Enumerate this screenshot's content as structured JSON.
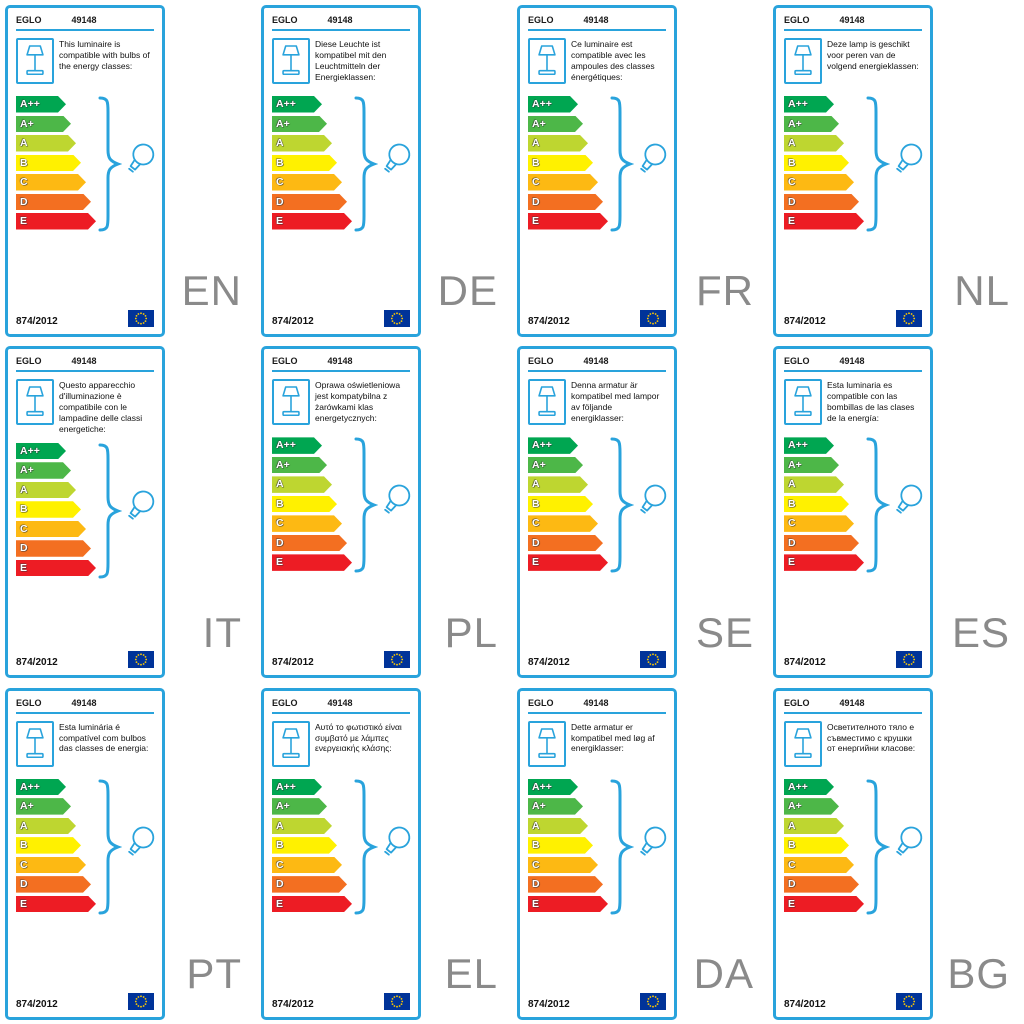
{
  "card": {
    "brand": "EGLO",
    "model": "49148",
    "regulation": "874/2012",
    "accent_color": "#29a3dc",
    "lang_color": "#8a8a8a"
  },
  "eu_flag": {
    "background": "#003399",
    "star_color": "#ffcc00"
  },
  "energy_classes": [
    {
      "label": "A++",
      "color": "#00a651"
    },
    {
      "label": "A+",
      "color": "#4db748"
    },
    {
      "label": "A",
      "color": "#bed630"
    },
    {
      "label": "B",
      "color": "#fff100"
    },
    {
      "label": "C",
      "color": "#fdb913"
    },
    {
      "label": "D",
      "color": "#f36f21"
    },
    {
      "label": "E",
      "color": "#ed1c24"
    }
  ],
  "cards": [
    {
      "lang": "EN",
      "description": "This luminaire is compatible with bulbs of the energy classes:"
    },
    {
      "lang": "DE",
      "description": "Diese Leuchte ist kompatibel mit den Leuchtmitteln der Energieklassen:"
    },
    {
      "lang": "FR",
      "description": "Ce luminaire est compatible avec les ampoules des classes énergétiques:"
    },
    {
      "lang": "NL",
      "description": "Deze lamp is geschikt voor peren van de volgend energieklassen:"
    },
    {
      "lang": "IT",
      "description": "Questo apparecchio d'illuminazione è compatibile con le lampadine delle classi energetiche:"
    },
    {
      "lang": "PL",
      "description": "Oprawa oświetleniowa jest kompatybilna z żarówkami klas energetycznych:"
    },
    {
      "lang": "SE",
      "description": "Denna armatur är kompatibel med lampor av följande energiklasser:"
    },
    {
      "lang": "ES",
      "description": "Esta luminaria es compatible con las bombillas de las clases de la energía:"
    },
    {
      "lang": "PT",
      "description": "Esta luminária é compatível com bulbos das classes de energia:"
    },
    {
      "lang": "EL",
      "description": "Αυτό το φωτιστικό είναι συμβατό με λάμπες ενεργειακής κλάσης:"
    },
    {
      "lang": "DA",
      "description": "Dette armatur er kompatibel med løg af energiklasser:"
    },
    {
      "lang": "BG",
      "description": "Осветителното тяло е съвместимо с крушки от енергийни класове:"
    }
  ]
}
